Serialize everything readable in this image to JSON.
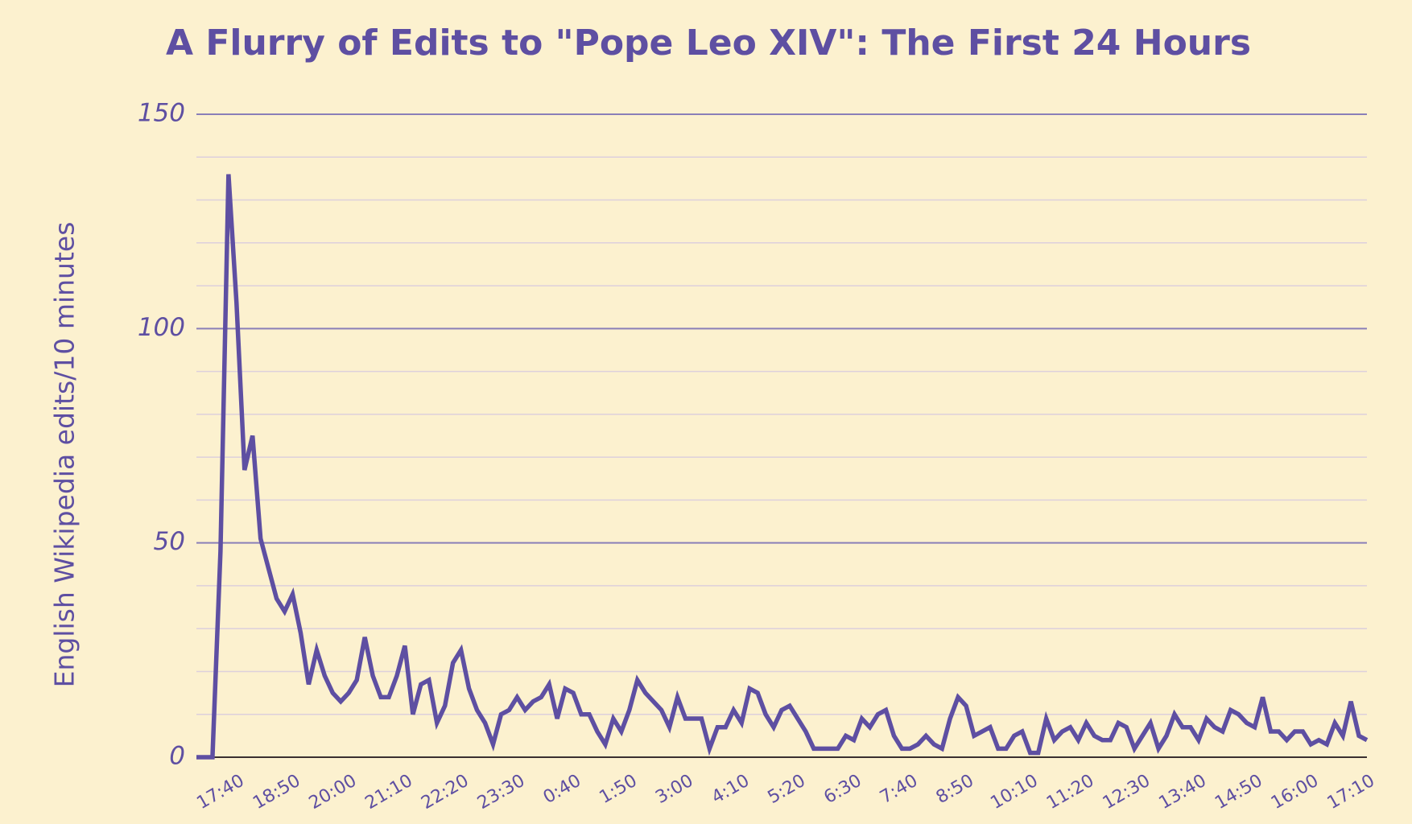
{
  "chart_data": {
    "type": "line",
    "title": "A Flurry of Edits to \"Pope Leo XIV\": The First 24 Hours",
    "y_label": "English Wikipedia edits/10 minutes",
    "color": "#5e4fa2",
    "ylim": [
      0,
      150
    ],
    "yticks": [
      0,
      50,
      100,
      150
    ],
    "grid": true,
    "minor_grid_step": 10,
    "categories": [
      null,
      null,
      null,
      null,
      null,
      "17:40",
      null,
      null,
      null,
      null,
      null,
      null,
      "18:50",
      null,
      null,
      null,
      null,
      null,
      null,
      "20:00",
      null,
      null,
      null,
      null,
      null,
      null,
      "21:10",
      null,
      null,
      null,
      null,
      null,
      null,
      "22:20",
      null,
      null,
      null,
      null,
      null,
      null,
      "23:30",
      null,
      null,
      null,
      null,
      null,
      null,
      "0:40",
      null,
      null,
      null,
      null,
      null,
      null,
      "1:50",
      null,
      null,
      null,
      null,
      null,
      null,
      "3:00",
      null,
      null,
      null,
      null,
      null,
      null,
      "4:10",
      null,
      null,
      null,
      null,
      null,
      null,
      "5:20",
      null,
      null,
      null,
      null,
      null,
      null,
      "6:30",
      null,
      null,
      null,
      null,
      null,
      null,
      "7:40",
      null,
      null,
      null,
      null,
      null,
      null,
      "8:50",
      null,
      null,
      null,
      null,
      null,
      null,
      null,
      "10:10",
      null,
      null,
      null,
      null,
      null,
      null,
      "11:20",
      null,
      null,
      null,
      null,
      null,
      null,
      "12:30",
      null,
      null,
      null,
      null,
      null,
      null,
      "13:40",
      null,
      null,
      null,
      null,
      null,
      null,
      "14:50",
      null,
      null,
      null,
      null,
      null,
      null,
      "16:00",
      null,
      null,
      null,
      null,
      null,
      null,
      "17:10"
    ],
    "values": [
      0,
      0,
      0,
      48,
      136,
      106,
      67,
      75,
      51,
      44,
      37,
      34,
      38,
      29,
      17,
      25,
      19,
      15,
      13,
      15,
      18,
      28,
      19,
      14,
      14,
      19,
      26,
      10,
      17,
      18,
      8,
      12,
      22,
      25,
      16,
      11,
      8,
      3,
      10,
      11,
      14,
      11,
      13,
      14,
      17,
      9,
      16,
      15,
      10,
      10,
      6,
      3,
      9,
      6,
      11,
      18,
      15,
      13,
      11,
      7,
      14,
      9,
      9,
      9,
      2,
      7,
      7,
      11,
      8,
      16,
      15,
      10,
      7,
      11,
      12,
      9,
      6,
      2,
      2,
      2,
      2,
      5,
      4,
      9,
      7,
      10,
      11,
      5,
      2,
      2,
      3,
      5,
      3,
      2,
      9,
      14,
      12,
      5,
      6,
      7,
      2,
      2,
      5,
      6,
      1,
      1,
      9,
      4,
      6,
      7,
      4,
      8,
      5,
      4,
      4,
      8,
      7,
      2,
      5,
      8,
      2,
      5,
      10,
      7,
      7,
      4,
      9,
      7,
      6,
      11,
      10,
      8,
      7,
      14,
      6,
      6,
      4,
      6,
      6,
      3,
      4,
      3,
      8,
      5,
      13,
      5,
      4
    ]
  }
}
